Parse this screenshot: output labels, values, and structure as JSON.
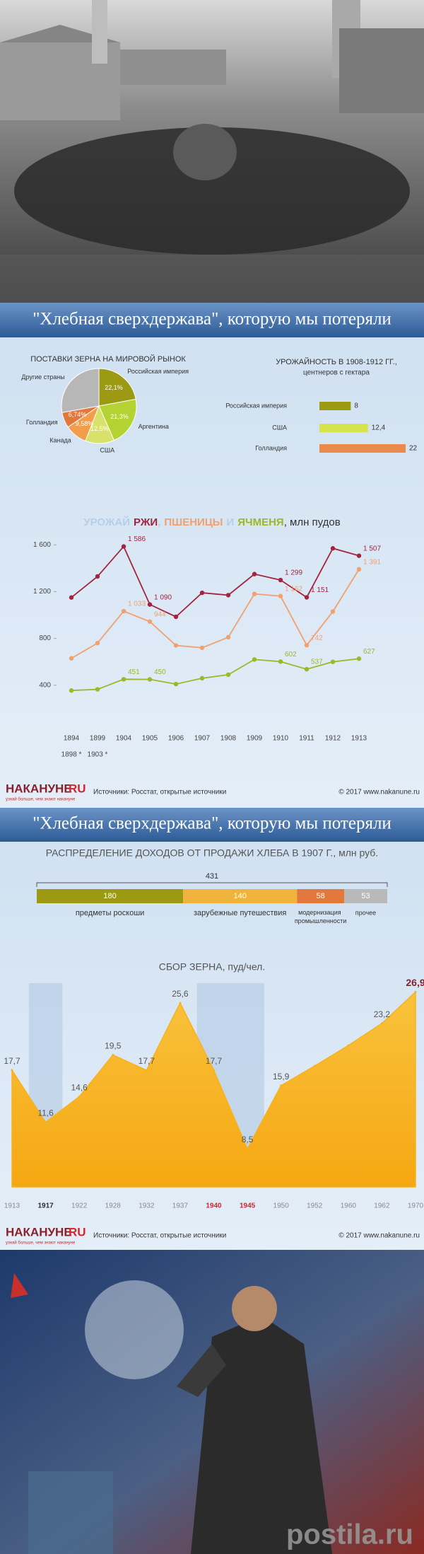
{
  "banner1": "\"Хлебная сверхдержава\", которую мы потеряли",
  "banner2": "\"Хлебная сверхдержава\", которую мы потеряли",
  "footer": {
    "logo": "НАКАНУНЕ",
    "logo_suffix": "RU",
    "tagline": "узнай больше, чем знают накануне",
    "sources": "Источники: Росстат, открытые источники",
    "copyright": "© 2017 www.nakanune.ru"
  },
  "watermark": "postila.ru",
  "chart_data": [
    {
      "type": "pie",
      "title": "ПОСТАВКИ ЗЕРНА НА МИРОВОЙ РЫНОК",
      "categories": [
        "Российская империя",
        "Аргентина",
        "США",
        "Канада",
        "Голландия",
        "Другие страны"
      ],
      "values": [
        22.1,
        21.3,
        12.5,
        9.58,
        6.74,
        27.78
      ],
      "value_labels": [
        "22,1%",
        "21,3%",
        "12,5%",
        "9,58%",
        "6,74%",
        null
      ],
      "colors": [
        "#9c9a12",
        "#b4d232",
        "#d8e26a",
        "#f29d4b",
        "#e2783b",
        "#b7b7b7"
      ]
    },
    {
      "type": "bar",
      "orientation": "horizontal",
      "title": "УРОЖАЙНОСТЬ В 1908-1912 ГГ.,",
      "subtitle": "центнеров с гектара",
      "categories": [
        "Российская империя",
        "США",
        "Голландия"
      ],
      "values": [
        8,
        12.4,
        22
      ],
      "value_labels": [
        "8",
        "12,4",
        "22"
      ],
      "colors": [
        "#9c9a12",
        "#d6e34a",
        "#e98a4a"
      ]
    },
    {
      "type": "line",
      "title_lead": "УРОЖАЙ",
      "title_sep": ",",
      "title_and": "И",
      "title_unit": ", млн пудов",
      "title_color": "#b4cfe9",
      "categories": [
        "1894",
        "1899",
        "1904",
        "1905",
        "1906",
        "1907",
        "1908",
        "1909",
        "1910",
        "1911",
        "1912",
        "1913"
      ],
      "x_notes": [
        "1898 *",
        "1903 *"
      ],
      "series": [
        {
          "name": "РЖИ",
          "color": "#a3243f",
          "values": [
            1150,
            1330,
            1586,
            1090,
            985,
            1190,
            1170,
            1350,
            1299,
            1151,
            1570,
            1507
          ],
          "value_labels": [
            null,
            null,
            "1 586",
            "1 090",
            null,
            null,
            null,
            null,
            "1 299",
            "1 151",
            null,
            "1 507"
          ]
        },
        {
          "name": "ПШЕНИЦЫ",
          "color": "#f1a06e",
          "values": [
            630,
            760,
            1033,
            944,
            740,
            720,
            810,
            1180,
            1162,
            742,
            1030,
            1391
          ],
          "value_labels": [
            null,
            null,
            "1 033",
            "944",
            null,
            null,
            null,
            null,
            "1 162",
            "742",
            null,
            "1 391"
          ]
        },
        {
          "name": "ЯЧМЕНЯ",
          "color": "#9ab82a",
          "values": [
            355,
            365,
            451,
            450,
            410,
            460,
            490,
            620,
            602,
            537,
            600,
            627
          ],
          "value_labels": [
            null,
            null,
            "451",
            "450",
            null,
            null,
            null,
            null,
            "602",
            "537",
            null,
            "627"
          ]
        }
      ],
      "ylim": [
        60,
        1650
      ],
      "yticks": [
        400,
        800,
        {
          "value": 1200,
          "label": "1 200"
        },
        {
          "value": 1600,
          "label": "1 600"
        }
      ],
      "grid": false
    },
    {
      "type": "stacked_bar",
      "title": "РАСПРЕДЕЛЕНИЕ ДОХОДОВ ОТ ПРОДАЖИ ХЛЕБА В 1907 Г., млн руб.",
      "total": 431,
      "categories": [
        "предметы роскоши",
        "зарубежные путешествия",
        "модернизация промышленности",
        "прочее"
      ],
      "values": [
        180,
        140,
        58,
        53
      ],
      "colors": [
        "#9c9a12",
        "#f2b33c",
        "#e2783b",
        "#b9b9b9"
      ]
    },
    {
      "type": "area",
      "title": "СБОР ЗЕРНА, пуд/чел.",
      "categories": [
        "1913",
        "1917",
        "1922",
        "1928",
        "1932",
        "1937",
        "1940",
        "1945",
        "1950",
        "1952",
        "1960",
        "1962",
        "1970"
      ],
      "category_colors": [
        "#8a8a8a",
        "#2c2c2c",
        "#8a8a8a",
        "#8a8a8a",
        "#8a8a8a",
        "#8a8a8a",
        "#d0282e",
        "#d0282e",
        "#8a8a8a",
        "#8a8a8a",
        "#8a8a8a",
        "#8a8a8a",
        "#8a8a8a"
      ],
      "highlight_color": "#b8cde6",
      "values": [
        17.7,
        11.6,
        14.6,
        19.5,
        17.7,
        25.6,
        17.7,
        8.5,
        15.9,
        18.2,
        20.6,
        23.2,
        26.9
      ],
      "value_labels": [
        "17,7",
        "11,6",
        "14,6",
        "19,5",
        "17,7",
        "25,6",
        "17,7",
        "8,5",
        "15,9",
        null,
        null,
        "23,2",
        "26,9"
      ],
      "color": "#f7b21b",
      "ylim": [
        4,
        30
      ]
    }
  ]
}
